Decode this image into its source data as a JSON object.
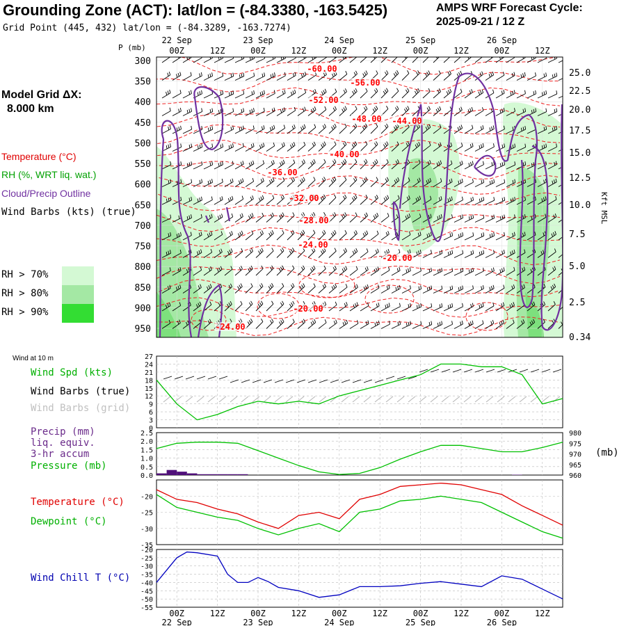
{
  "header": {
    "title": "Grounding Zone (ACT):  lat/lon = (-84.3380, -163.5425)",
    "subtitle": "Grid Point (445, 432) lat/lon = (-84.3289, -163.7274)",
    "cycle_line1": "AMPS WRF Forecast Cycle:",
    "cycle_line2": "2025-09-21 / 12  Z",
    "grid_line1": "Model Grid ΔX:",
    "grid_line2": "8.000 km"
  },
  "legend": {
    "temperature": "Temperature (°C)",
    "rh": "RH (%, WRT liq. wat.)",
    "cloud": "Cloud/Precip Outline",
    "wind": "Wind Barbs (kts) (true)",
    "rh70": "RH > 70%",
    "rh80": "RH > 80%",
    "rh90": "RH > 90%",
    "wind10m": "Wind at 10 m",
    "wind_spd": "Wind Spd (kts)",
    "barbs_true": "Wind Barbs (true)",
    "barbs_grid": "Wind Barbs (grid)",
    "precip1": "Precip (mm)",
    "precip2": "liq. equiv.",
    "precip3": "3-hr accum",
    "pressure": "Pressure (mb)",
    "pressure_unit": "(mb)",
    "temp2": "Temperature (°C)",
    "dewpoint": "Dewpoint (°C)",
    "windchill": "Wind Chill T (°C)",
    "p_unit": "P (mb)",
    "kft": "Kft MSL"
  },
  "colors": {
    "temperature": "#ff0000",
    "rh": "#00a000",
    "cloud": "#7030a0",
    "pressure": "#00c000",
    "windchill": "#0000c0",
    "precip": "#500070",
    "rh70": "#d0f8d0",
    "rh80": "#a0e8a0",
    "rh90": "#30dd30"
  },
  "time_axis": {
    "top_labels": [
      "00Z",
      "12Z",
      "00Z",
      "12Z",
      "00Z",
      "12Z",
      "00Z",
      "12Z",
      "00Z",
      "12Z"
    ],
    "top_dates": [
      "22 Sep",
      "23 Sep",
      "24 Sep",
      "25 Sep",
      "26 Sep"
    ],
    "bottom_labels": [
      "00Z",
      "12Z",
      "00Z",
      "12Z",
      "00Z",
      "12Z",
      "00Z",
      "12Z",
      "00Z",
      "12Z"
    ],
    "bottom_dates": [
      "22 Sep",
      "23 Sep",
      "24 Sep",
      "25 Sep",
      "26 Sep"
    ]
  },
  "chart_data": [
    {
      "type": "heatmap",
      "name": "cross-section",
      "pressure_ticks": [
        "300",
        "350",
        "400",
        "450",
        "500",
        "550",
        "600",
        "650",
        "700",
        "750",
        "800",
        "850",
        "900",
        "950"
      ],
      "height_ticks": [
        "25.0",
        "22.5",
        "20.0",
        "17.5",
        "15.0",
        "12.5",
        "10.0",
        "7.5",
        "5.0",
        "2.5",
        "0.34"
      ],
      "temperature_contour_labels": [
        "-60.00",
        "-56.00",
        "-52.00",
        "-48.00",
        "-44.00",
        "-40.00",
        "-36.00",
        "-32.00",
        "-28.00",
        "-24.00",
        "-20.00",
        "-20.00",
        "-24.00"
      ]
    },
    {
      "type": "line",
      "name": "wind speed 10 m",
      "yticks": [
        "27",
        "24",
        "21",
        "18",
        "15",
        "12",
        "9",
        "6",
        "3",
        "0"
      ],
      "ylim": [
        0,
        27
      ],
      "x_hours": [
        0,
        6,
        12,
        18,
        24,
        30,
        36,
        42,
        48,
        54,
        60,
        66,
        72,
        78,
        84,
        90,
        96,
        102,
        108,
        114,
        120
      ],
      "values": [
        18,
        9,
        3,
        5,
        8,
        10,
        9,
        10,
        9,
        12,
        14,
        16,
        18,
        20,
        24,
        24,
        23,
        23,
        20,
        9,
        11
      ]
    },
    {
      "type": "line",
      "name": "precip and pressure",
      "precip_ticks": [
        "2.5",
        "2.0",
        "1.5",
        "1.0",
        "0.5",
        "0.0"
      ],
      "pressure_ticks": [
        "980",
        "975",
        "970",
        "965",
        "960"
      ],
      "precip_ylim": [
        0,
        2.5
      ],
      "pressure_ylim": [
        960,
        980
      ],
      "precip_x_hours": [
        0,
        3,
        6,
        9,
        12,
        15,
        18,
        21,
        24,
        27,
        30,
        105
      ],
      "precip_values": [
        0.1,
        0.3,
        0.2,
        0.1,
        0.05,
        0.05,
        0.05,
        0.05,
        0.05,
        0.0,
        0.0,
        0.02
      ],
      "pressure_x_hours": [
        0,
        6,
        12,
        18,
        24,
        30,
        36,
        42,
        48,
        54,
        60,
        66,
        72,
        78,
        84,
        90,
        96,
        102,
        108,
        114,
        120
      ],
      "pressure_values": [
        972.5,
        975,
        975.5,
        975.5,
        975,
        971.5,
        968,
        964.5,
        961.5,
        960.3,
        960.8,
        963.5,
        967.5,
        971,
        974,
        974,
        972.5,
        971,
        971,
        973,
        975.5
      ]
    },
    {
      "type": "line",
      "name": "temperature and dewpoint",
      "yticks": [
        "-20",
        "-25",
        "-30",
        "-35"
      ],
      "ylim": [
        -35,
        -15
      ],
      "x_hours": [
        0,
        6,
        12,
        18,
        24,
        30,
        36,
        42,
        48,
        54,
        60,
        66,
        72,
        78,
        84,
        90,
        96,
        102,
        108,
        114,
        120
      ],
      "temperature": [
        -18,
        -21,
        -22,
        -24,
        -25.5,
        -28,
        -30,
        -26,
        -25,
        -27,
        -21,
        -19.5,
        -17,
        -16.5,
        -16,
        -16.5,
        -18,
        -19.5,
        -23,
        -26,
        -29
      ],
      "dewpoint": [
        -19.5,
        -23.5,
        -25,
        -26.5,
        -27.5,
        -30,
        -32,
        -30,
        -28.5,
        -31,
        -25,
        -24,
        -21.5,
        -21,
        -20,
        -21,
        -22,
        -25,
        -28,
        -31,
        -33
      ]
    },
    {
      "type": "line",
      "name": "wind chill",
      "yticks": [
        "-20",
        "-25",
        "-30",
        "-35",
        "-40",
        "-45",
        "-50",
        "-55"
      ],
      "ylim": [
        -55,
        -20
      ],
      "x_hours": [
        0,
        6,
        9,
        12,
        18,
        21,
        24,
        27,
        30,
        33,
        36,
        42,
        48,
        54,
        60,
        66,
        72,
        78,
        84,
        90,
        96,
        102,
        108,
        114,
        120
      ],
      "values": [
        -40,
        -25,
        -21.5,
        -22,
        -24,
        -35,
        -40,
        -40,
        -37,
        -39.5,
        -43,
        -45,
        -49,
        -47.5,
        -42.5,
        -42.5,
        -42,
        -40.5,
        -39.5,
        -41,
        -42.5,
        -36,
        -38,
        -44,
        -50
      ]
    }
  ]
}
